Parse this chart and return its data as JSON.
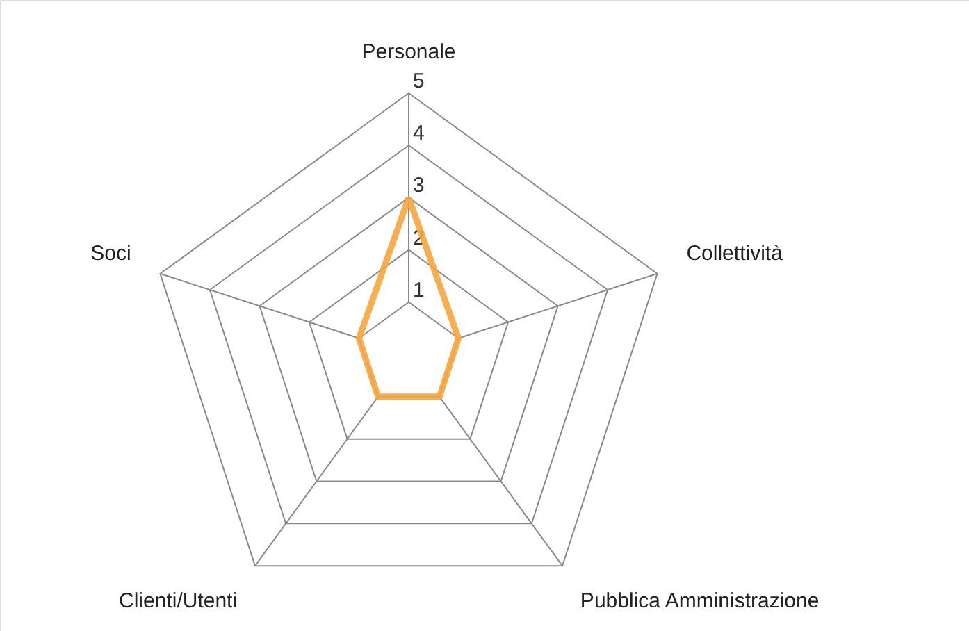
{
  "chart_data": {
    "type": "radar",
    "categories": [
      "Personale",
      "Collettività",
      "Pubblica Amministrazione",
      "Clienti/Utenti",
      "Soci"
    ],
    "series": [
      {
        "color": "#f5a53c",
        "values": [
          3,
          1,
          1,
          1,
          1
        ]
      }
    ],
    "ylim": [
      0,
      5
    ],
    "yticks": [
      1,
      2,
      3,
      4,
      5
    ],
    "grid": true
  }
}
